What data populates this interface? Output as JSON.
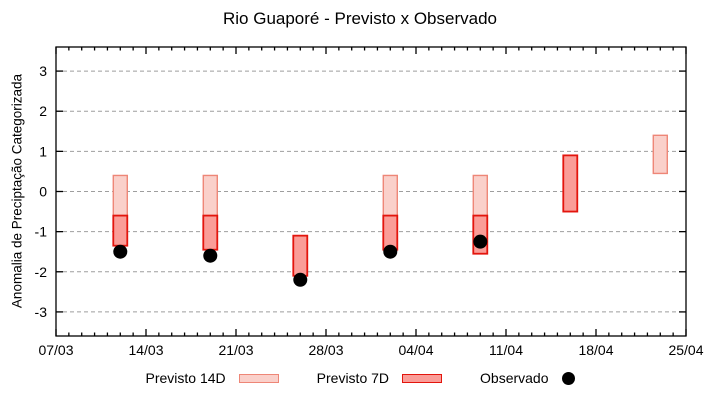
{
  "chart_data": {
    "type": "bar",
    "subtype": "range-bars-with-observed-dots",
    "title": "Rio Guaporé - Previsto x Observado",
    "ylabel": "Anomalia de Preciptação Categorizada",
    "xlabel": "",
    "ylim": [
      -3.6,
      3.6
    ],
    "yticks": [
      -3,
      -2,
      -1,
      0,
      1,
      2,
      3
    ],
    "grid": "dashed-horizontal",
    "legend_position": "bottom-center",
    "x_axis": {
      "tick_labels": [
        "07/03",
        "14/03",
        "21/03",
        "28/03",
        "04/04",
        "11/04",
        "18/04",
        "25/04"
      ],
      "tick_days": [
        0,
        7,
        14,
        21,
        28,
        35,
        42,
        49
      ],
      "total_days": 49,
      "minor_tick_every_days": 1
    },
    "points": [
      {
        "date": "12/03",
        "day": 5,
        "p14": {
          "top": 0.4,
          "bottom": -0.6
        },
        "p7": {
          "top": -0.6,
          "bottom": -1.35
        },
        "obs": -1.5
      },
      {
        "date": "19/03",
        "day": 12,
        "p14": {
          "top": 0.4,
          "bottom": -0.6
        },
        "p7": {
          "top": -0.6,
          "bottom": -1.45
        },
        "obs": -1.6
      },
      {
        "date": "26/03",
        "day": 19,
        "p14": null,
        "p7": {
          "top": -1.1,
          "bottom": -2.1
        },
        "obs": -2.2
      },
      {
        "date": "02/04",
        "day": 26,
        "p14": {
          "top": 0.4,
          "bottom": -0.6
        },
        "p7": {
          "top": -0.6,
          "bottom": -1.45
        },
        "obs": -1.5
      },
      {
        "date": "09/04",
        "day": 33,
        "p14": {
          "top": 0.4,
          "bottom": -0.6
        },
        "p7": {
          "top": -0.6,
          "bottom": -1.55
        },
        "obs": -1.25
      },
      {
        "date": "16/04",
        "day": 40,
        "p14": null,
        "p7": {
          "top": 0.9,
          "bottom": -0.5
        },
        "obs": null
      },
      {
        "date": "23/04",
        "day": 47,
        "p14": {
          "top": 1.4,
          "bottom": 0.45
        },
        "p7": null,
        "obs": null
      }
    ],
    "legend": [
      {
        "label": "Previsto 14D",
        "marker": "box",
        "fill": "#fad0ca",
        "stroke": "#ee8677"
      },
      {
        "label": "Previsto 7D",
        "marker": "box",
        "fill": "#fa9d98",
        "stroke": "#e3150d"
      },
      {
        "label": "Observado",
        "marker": "dot",
        "fill": "#000000"
      }
    ],
    "colors": {
      "grid": "#9e9e9e",
      "axis": "#000000",
      "background": "#ffffff"
    }
  }
}
